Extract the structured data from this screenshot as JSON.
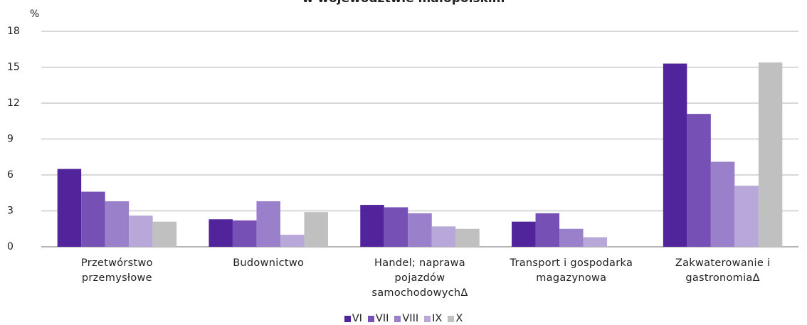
{
  "chart_data": {
    "type": "bar",
    "title": "w województwie małopolskim",
    "y_label": "%",
    "categories": [
      "Przetwórstwo przemysłowe",
      "Budownictwo",
      "Handel; naprawa pojazdów samochodowychΔ",
      "Transport i gospodarka magazynowa",
      "Zakwaterowanie i gastronomiaΔ"
    ],
    "series": [
      {
        "name": "VI",
        "color": "#52249b",
        "values": [
          6.5,
          2.3,
          3.5,
          2.1,
          15.3
        ]
      },
      {
        "name": "VII",
        "color": "#7650b5",
        "values": [
          4.6,
          2.2,
          3.3,
          2.8,
          11.1
        ]
      },
      {
        "name": "VIII",
        "color": "#9a7fca",
        "values": [
          3.8,
          3.8,
          2.8,
          1.5,
          7.1
        ]
      },
      {
        "name": "IX",
        "color": "#b8a8da",
        "values": [
          2.6,
          1.0,
          1.7,
          0.8,
          5.1
        ]
      },
      {
        "name": "X",
        "color": "#c0c0c0",
        "values": [
          2.1,
          2.9,
          1.5,
          null,
          15.4
        ]
      }
    ],
    "ylim": [
      0,
      18
    ],
    "yticks": [
      0,
      3,
      6,
      9,
      12,
      15,
      18
    ],
    "grid": true,
    "legend": "bottom"
  }
}
